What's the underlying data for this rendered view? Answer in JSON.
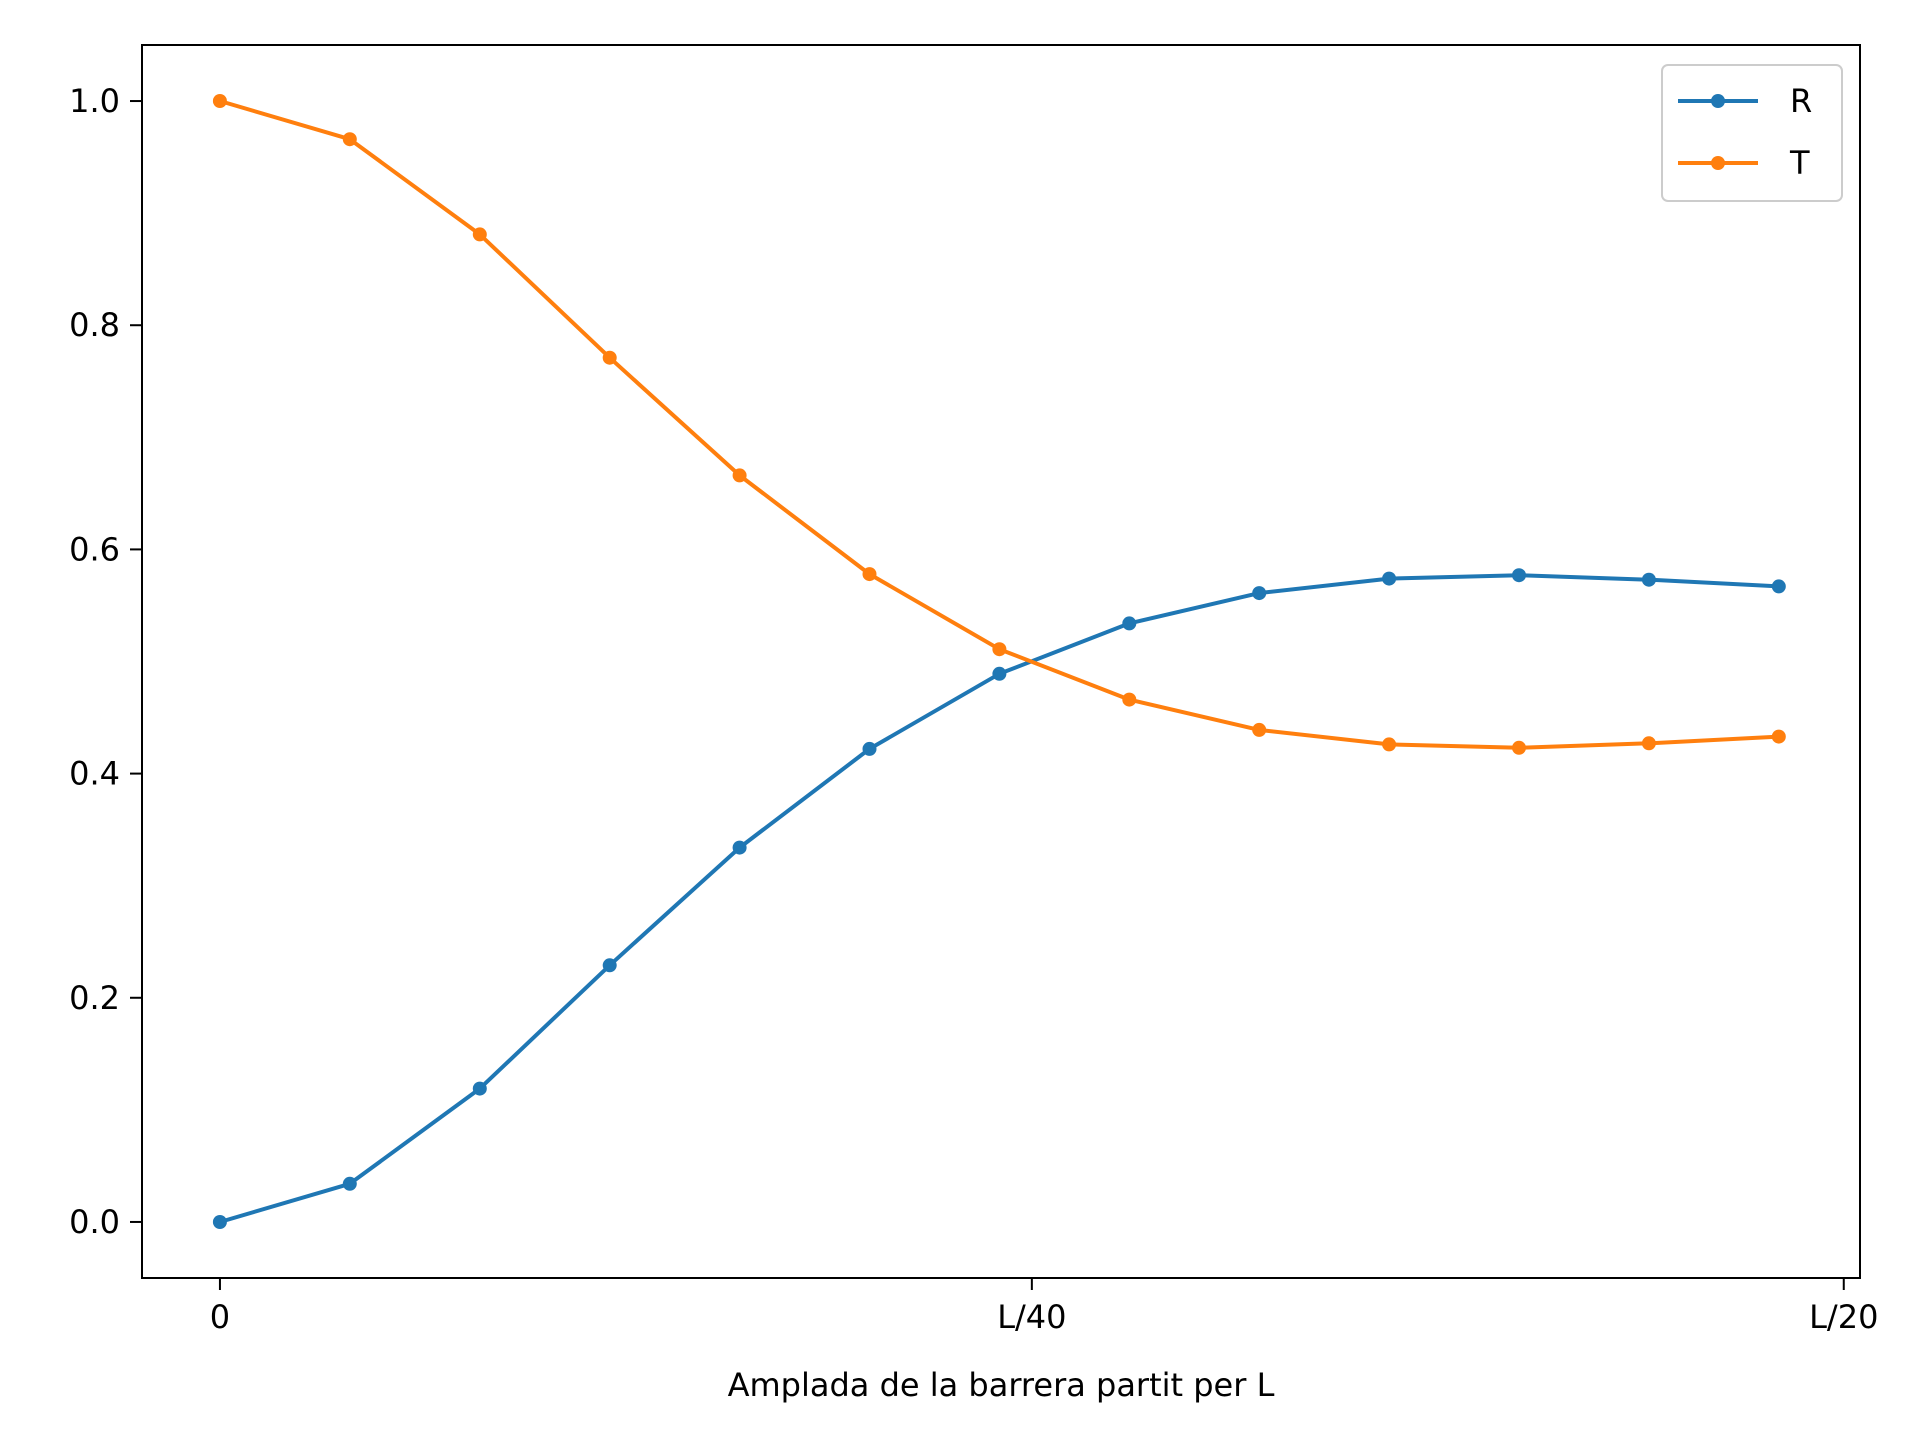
{
  "chart_data": {
    "type": "line",
    "title": "",
    "xlabel": "Amplada de la barrera partit per L",
    "ylabel": "",
    "x": [
      0,
      0.004,
      0.008,
      0.012,
      0.016,
      0.02,
      0.024,
      0.028,
      0.032,
      0.036,
      0.04,
      0.044,
      0.048
    ],
    "xlim": [
      -0.0024,
      0.0505
    ],
    "ylim": [
      -0.05,
      1.05
    ],
    "xticks": [
      {
        "value": 0,
        "label": "0"
      },
      {
        "value": 0.025,
        "label": "L/40"
      },
      {
        "value": 0.05,
        "label": "L/20"
      }
    ],
    "yticks": [
      {
        "value": 0.0,
        "label": "0.0"
      },
      {
        "value": 0.2,
        "label": "0.2"
      },
      {
        "value": 0.4,
        "label": "0.4"
      },
      {
        "value": 0.6,
        "label": "0.6"
      },
      {
        "value": 0.8,
        "label": "0.8"
      },
      {
        "value": 1.0,
        "label": "1.0"
      }
    ],
    "grid": false,
    "legend_position": "top-right",
    "series": [
      {
        "name": "R",
        "color": "#1f77b4",
        "values": [
          0.0,
          0.034,
          0.119,
          0.229,
          0.334,
          0.422,
          0.489,
          0.534,
          0.561,
          0.574,
          0.577,
          0.573,
          0.567
        ]
      },
      {
        "name": "T",
        "color": "#ff7f0e",
        "values": [
          1.0,
          0.966,
          0.881,
          0.771,
          0.666,
          0.578,
          0.511,
          0.466,
          0.439,
          0.426,
          0.423,
          0.427,
          0.433
        ]
      }
    ]
  }
}
